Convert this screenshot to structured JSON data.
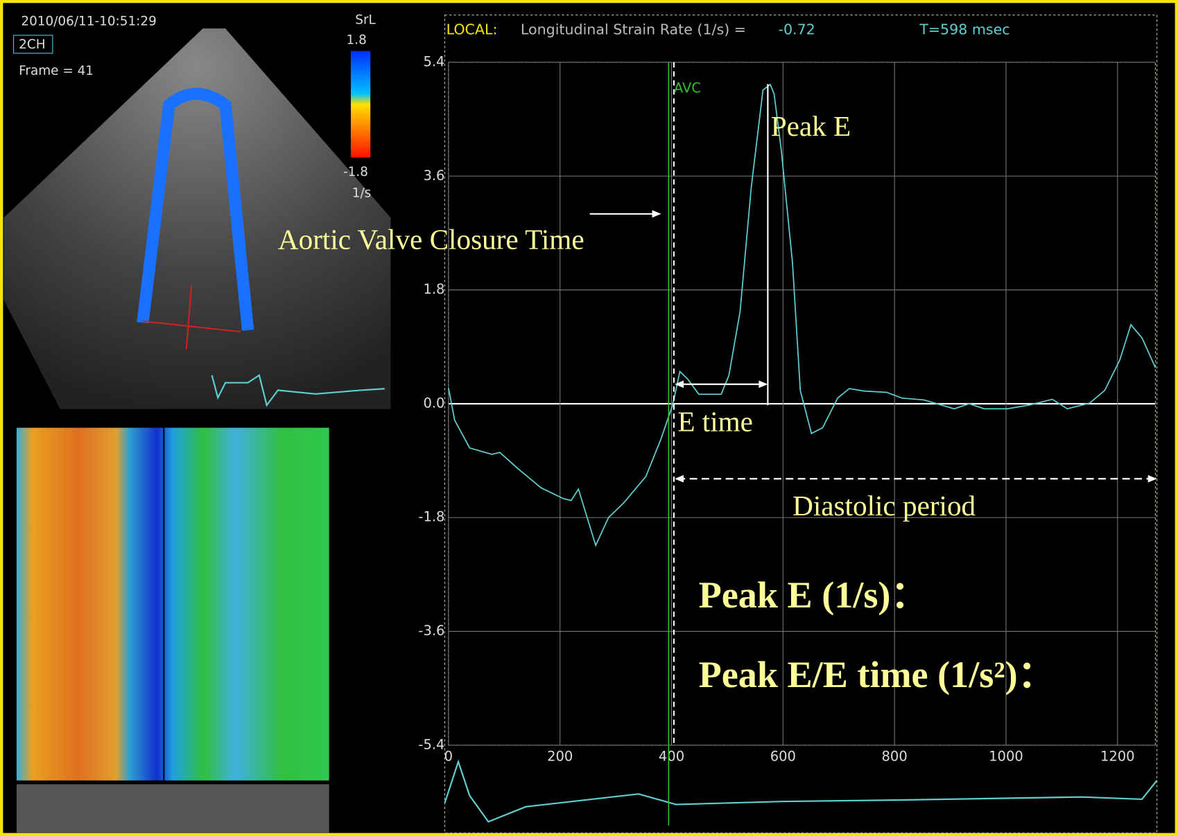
{
  "echo_panel": {
    "timestamp": "2010/06/11-10:51:29",
    "view": "2CH",
    "frame": "Frame = 41",
    "scale_name": "SrL",
    "scale_max": "1.8",
    "scale_min": "-1.8",
    "scale_unit": "1/s"
  },
  "header": {
    "mode": "LOCAL:",
    "measure": "Longitudinal Strain Rate (1/s) =",
    "reading": "-0.72",
    "time": "T=598 msec"
  },
  "chart_data": {
    "type": "line",
    "x": [
      0,
      11,
      38,
      78,
      92,
      125,
      166,
      206,
      220,
      233,
      264,
      287,
      314,
      354,
      381,
      402,
      415,
      429,
      449,
      489,
      503,
      523,
      543,
      564,
      577,
      584,
      597,
      617,
      631,
      651,
      671,
      698,
      719,
      746,
      786,
      813,
      853,
      907,
      934,
      961,
      1002,
      1042,
      1083,
      1110,
      1150,
      1177,
      1204,
      1224,
      1244,
      1268
    ],
    "series": [
      {
        "color": "#5fd0d0",
        "values": [
          0.25,
          -0.26,
          -0.7,
          -0.8,
          -0.77,
          -1.03,
          -1.33,
          -1.5,
          -1.53,
          -1.35,
          -2.24,
          -1.8,
          -1.57,
          -1.15,
          -0.56,
          -0.02,
          0.51,
          0.39,
          0.15,
          0.15,
          0.45,
          1.46,
          3.42,
          4.96,
          5.05,
          4.9,
          4.0,
          2.23,
          0.21,
          -0.47,
          -0.38,
          0.09,
          0.24,
          0.2,
          0.18,
          0.09,
          0.06,
          -0.08,
          0,
          -0.08,
          -0.08,
          -0.02,
          0.07,
          -0.08,
          0.01,
          0.21,
          0.69,
          1.25,
          1.04,
          0.57
        ]
      }
    ],
    "xlim": [
      0,
      1268
    ],
    "ylim": [
      -5.4,
      5.4
    ],
    "xticks": [
      0,
      200,
      400,
      600,
      800,
      1000,
      1200
    ],
    "yticks": [
      5.4,
      3.6,
      1.8,
      {
        "value": 0,
        "label": "0.0"
      },
      -1.8,
      -3.6,
      -5.4
    ],
    "grid": true,
    "annotations": [
      "AVC",
      "Peak E",
      "Aortic Valve Closure Time",
      "E time",
      "Diastolic period",
      "Peak E (1/s)：",
      "Peak E/E time (1/s²)："
    ]
  }
}
